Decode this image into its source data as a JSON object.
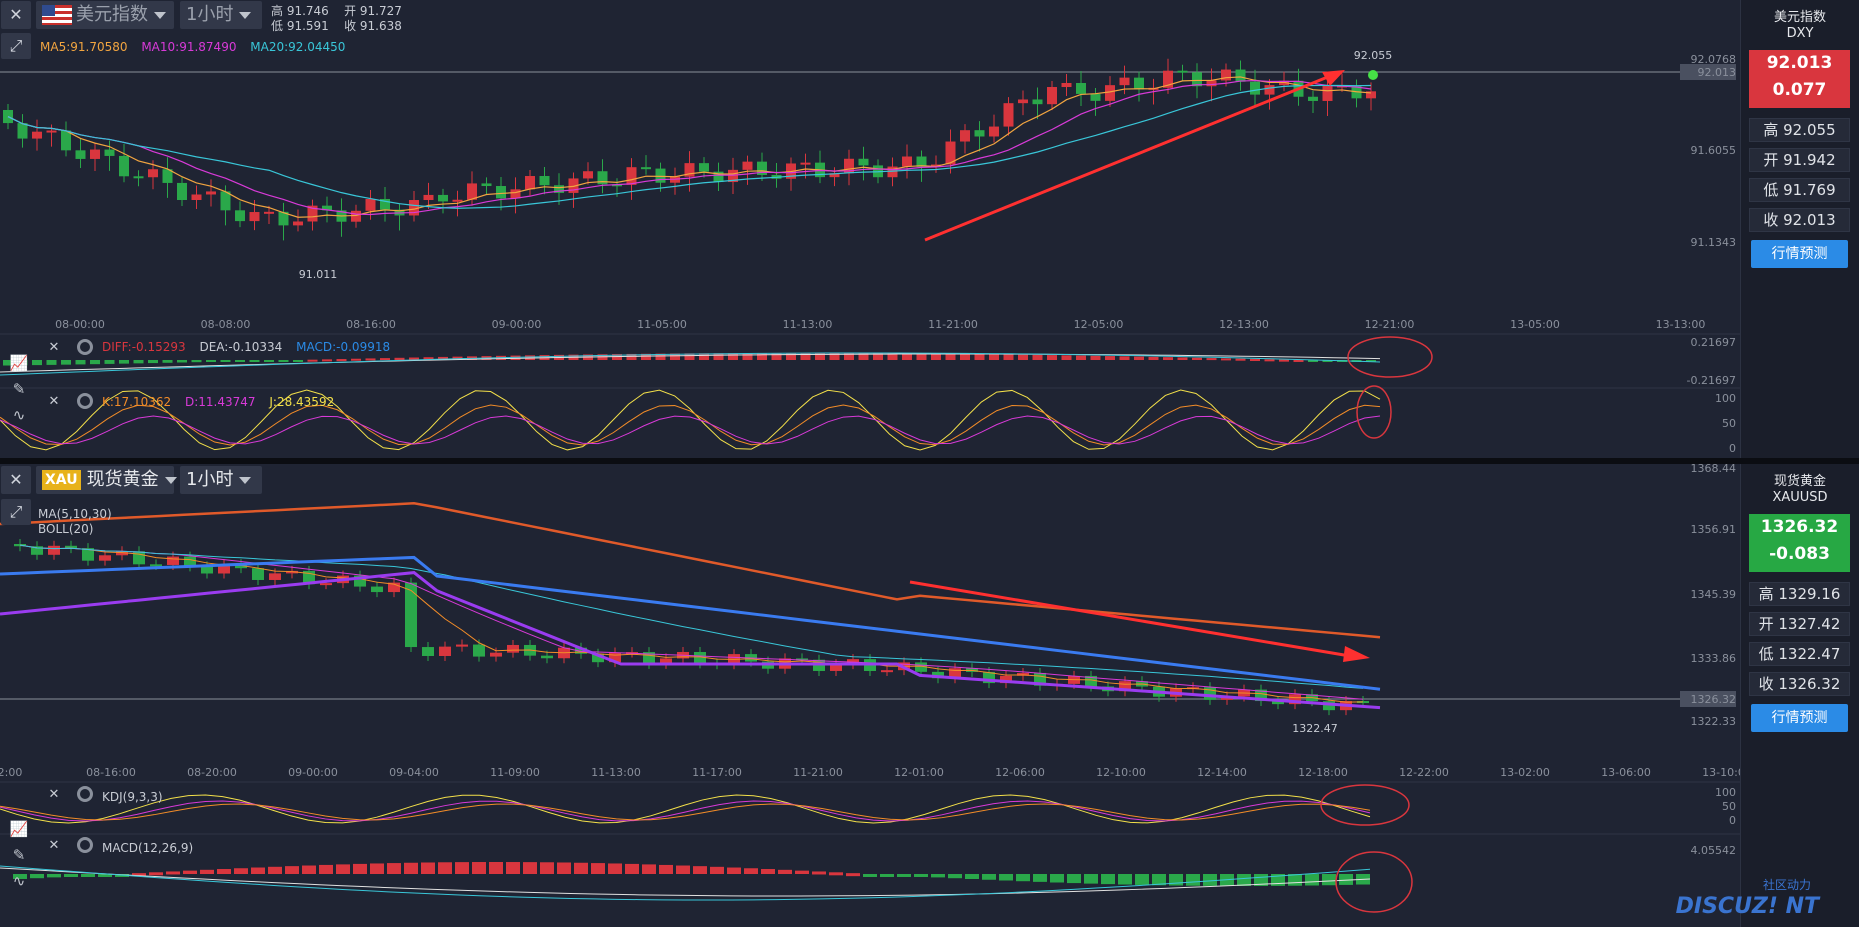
{
  "top": {
    "close_glyph": "✕",
    "expand_glyph": "⤢",
    "symbol_name": "美元指数",
    "timeframe": "1小时",
    "ohlc": {
      "high": "高 91.746",
      "open": "开 91.727",
      "low": "低 91.591",
      "close": "收 91.638"
    },
    "ma_legend": {
      "ma5": "MA5:91.70580",
      "ma10": "MA10:91.87490",
      "ma20": "MA20:92.04450"
    },
    "price_axis": [
      "92.0768",
      "92.013",
      "91.6055",
      "91.1343"
    ],
    "time_axis": [
      "08-00:00",
      "08-08:00",
      "08-16:00",
      "09-00:00",
      "11-05:00",
      "11-13:00",
      "11-21:00",
      "12-05:00",
      "12-13:00",
      "12-21:00",
      "13-05:00",
      "13-13:00"
    ],
    "low_label": "91.011",
    "high_label": "92.055",
    "macd_legend": {
      "diff": "DIFF:-0.15293",
      "dea": "DEA:-0.10334",
      "macd": "MACD:-0.09918"
    },
    "macd_axis": [
      "0.21697",
      "-0.21697"
    ],
    "kdj_legend": {
      "k": "K:17.10362",
      "d": "D:11.43747",
      "j": "J:28.43592"
    },
    "kdj_axis": [
      "100",
      "50",
      "0"
    ],
    "side": {
      "name": "美元指数",
      "code": "DXY",
      "price": "92.013",
      "change": "0.077",
      "high": "高 92.055",
      "open": "开 91.942",
      "low": "低 91.769",
      "close": "收 92.013",
      "forecast": "行情预测"
    }
  },
  "bottom": {
    "close_glyph": "✕",
    "expand_glyph": "⤢",
    "badge": "XAU",
    "symbol_name": "现货黄金",
    "timeframe": "1小时",
    "ma_legend": "MA(5,10,30)",
    "boll_legend": "BOLL(20)",
    "price_axis": [
      "1368.44",
      "1356.91",
      "1345.39",
      "1333.86",
      "1326.32",
      "1322.33"
    ],
    "time_axis": [
      "2:00",
      "08-16:00",
      "08-20:00",
      "09-00:00",
      "09-04:00",
      "11-09:00",
      "11-13:00",
      "11-17:00",
      "11-21:00",
      "12-01:00",
      "12-06:00",
      "12-10:00",
      "12-14:00",
      "12-18:00",
      "12-22:00",
      "13-02:00",
      "13-06:00",
      "13-10:00"
    ],
    "low_label": "1322.47",
    "kdj_legend": "KDJ(9,3,3)",
    "kdj_axis": [
      "100",
      "50",
      "0"
    ],
    "macd_legend": "MACD(12,26,9)",
    "macd_axis": "4.05542",
    "side": {
      "name": "现货黄金",
      "code": "XAUUSD",
      "price": "1326.32",
      "change": "-0.083",
      "high": "高 1329.16",
      "open": "开 1327.42",
      "low": "低 1322.47",
      "close": "收 1326.32",
      "forecast": "行情预测"
    }
  },
  "watermark": {
    "brand": "DISCUZ! NT",
    "sub": "社区动力"
  },
  "colors": {
    "up": "#d9363e",
    "down": "#2aa84a",
    "bg": "#1f2433",
    "accent": "#2b8be6",
    "arrow": "#ff3030"
  }
}
